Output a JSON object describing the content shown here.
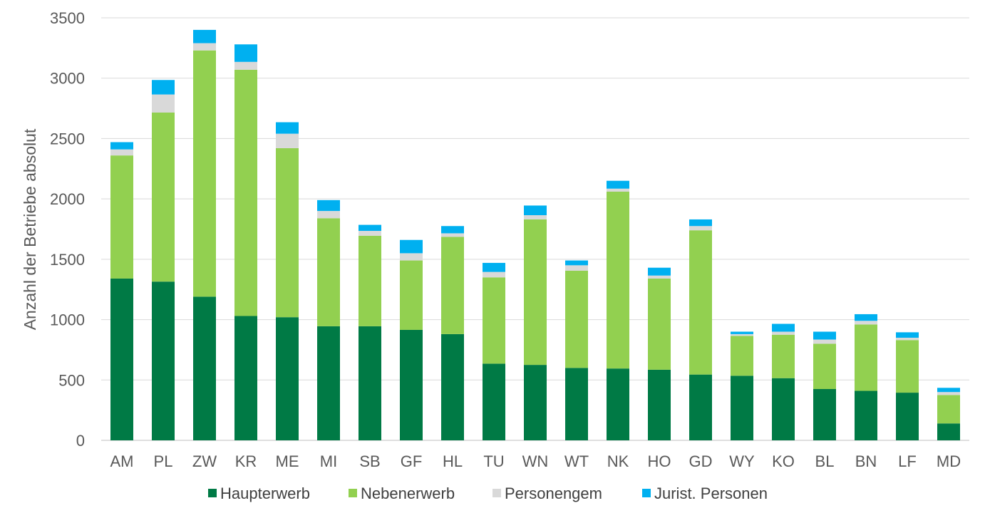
{
  "chart_data": {
    "type": "bar",
    "stacked": true,
    "title": "",
    "xlabel": "",
    "ylabel": "Anzahl der Betriebe absolut",
    "ylim": [
      0,
      3500
    ],
    "yticks": [
      0,
      500,
      1000,
      1500,
      2000,
      2500,
      3000,
      3500
    ],
    "grid": true,
    "legend_position": "bottom",
    "categories": [
      "AM",
      "PL",
      "ZW",
      "KR",
      "ME",
      "MI",
      "SB",
      "GF",
      "HL",
      "TU",
      "WN",
      "WT",
      "NK",
      "HO",
      "GD",
      "WY",
      "KO",
      "BL",
      "BN",
      "LF",
      "MD"
    ],
    "series": [
      {
        "name": "Haupterwerb",
        "color": "#007A45",
        "values": [
          1340,
          1315,
          1190,
          1030,
          1020,
          945,
          945,
          915,
          880,
          635,
          625,
          600,
          595,
          585,
          545,
          535,
          515,
          425,
          410,
          395,
          140
        ]
      },
      {
        "name": "Nebenerwerb",
        "color": "#92D050",
        "values": [
          1020,
          1400,
          2040,
          2040,
          1400,
          895,
          750,
          575,
          805,
          715,
          1205,
          805,
          1465,
          755,
          1195,
          330,
          360,
          375,
          550,
          435,
          235
        ]
      },
      {
        "name": "Personengem",
        "color": "#D9D9D9",
        "values": [
          50,
          150,
          60,
          65,
          120,
          60,
          40,
          60,
          30,
          45,
          35,
          45,
          25,
          25,
          35,
          15,
          25,
          35,
          30,
          20,
          25
        ]
      },
      {
        "name": "Jurist. Personen",
        "color": "#00B0F0",
        "values": [
          60,
          120,
          110,
          145,
          95,
          90,
          50,
          110,
          60,
          75,
          80,
          40,
          65,
          65,
          55,
          20,
          65,
          65,
          55,
          45,
          35
        ]
      }
    ]
  }
}
